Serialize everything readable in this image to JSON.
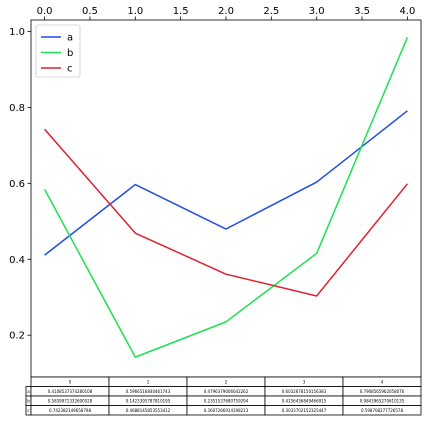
{
  "chart_data": {
    "type": "line",
    "title": "",
    "xlabel": "",
    "ylabel": "",
    "x": [
      0,
      1,
      2,
      3,
      4
    ],
    "xlim": [
      -0.15,
      4.15
    ],
    "ylim": [
      0.09,
      1.03
    ],
    "x_axis_position": "top",
    "x_ticks": [
      0.0,
      0.5,
      1.0,
      1.5,
      2.0,
      2.5,
      3.0,
      3.5,
      4.0
    ],
    "x_tick_labels": [
      "0.0",
      "0.5",
      "1.0",
      "1.5",
      "2.0",
      "2.5",
      "3.0",
      "3.5",
      "4.0"
    ],
    "y_ticks": [
      0.2,
      0.4,
      0.6,
      0.8,
      1.0
    ],
    "y_tick_labels": [
      "0.2",
      "0.4",
      "0.6",
      "0.8",
      "1.0"
    ],
    "grid": false,
    "legend": "top-left",
    "series": [
      {
        "name": "a",
        "color": "#1f4fe0",
        "values": [
          0.4108537374280108,
          0.5966516840461743,
          0.4796379006042262,
          0.6032678150156383,
          0.7908565962058076
        ]
      },
      {
        "name": "b",
        "color": "#1fe04f",
        "values": [
          0.5839971332690528,
          0.1423395787810195,
          0.2351537680759294,
          0.4156436849466691,
          0.9843965270610135
        ]
      },
      {
        "name": "c",
        "color": "#e01f2f",
        "values": [
          0.7423821496856798,
          0.4688145853553412,
          0.3607266914198621,
          0.3033702152325447,
          0.5987082777726578
        ]
      }
    ],
    "table": {
      "columns": [
        "0",
        "1",
        "2",
        "3",
        "4"
      ],
      "rows": [
        {
          "label": "a",
          "cells": [
            "0.4108537374280108",
            "0.5966516840461743",
            "0.4796379006042262",
            "0.6032678150156383",
            "0.7908565962058076"
          ]
        },
        {
          "label": "b",
          "cells": [
            "0.5839971332690528",
            "0.1423395787810195",
            "0.2351537680759294",
            "0.4156436849466915",
            "0.9843965270610135"
          ]
        },
        {
          "label": "c",
          "cells": [
            "0.742382149656798",
            "0.4688145853553412",
            "0.3607266914198213",
            "0.3033702152325447",
            "0.598708277726578"
          ]
        }
      ]
    }
  }
}
